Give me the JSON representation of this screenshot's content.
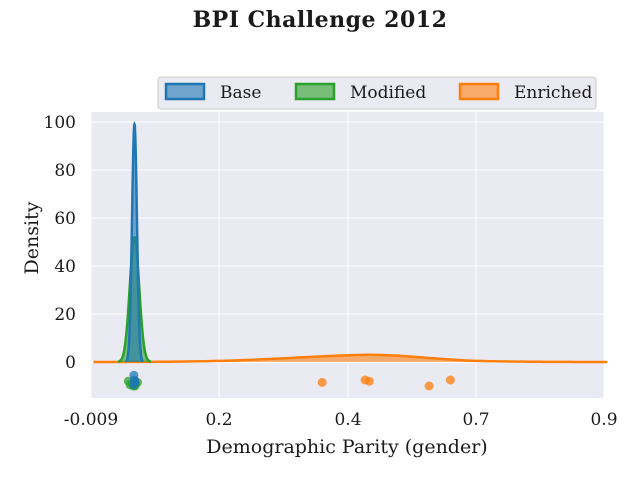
{
  "chart_data": {
    "type": "density",
    "title": "BPI Challenge 2012",
    "xlabel": "Demographic Parity (gender)",
    "ylabel": "Density",
    "xlim": [
      -0.009,
      0.9
    ],
    "ylim": [
      -15,
      104
    ],
    "x_ticks": [
      {
        "value": -0.009,
        "label": "-0.009"
      },
      {
        "value": 0.2,
        "label": "0.2"
      },
      {
        "value": 0.4,
        "label": "0.4"
      },
      {
        "value": 0.7,
        "label": "0.7"
      },
      {
        "value": 0.9,
        "label": "0.9"
      }
    ],
    "y_ticks": [
      0,
      20,
      40,
      60,
      80,
      100
    ],
    "grid": true,
    "legend_position": "top",
    "series": [
      {
        "name": "Base",
        "color": "#1f77b4",
        "kde": {
          "peak_x": 0.062,
          "peak_density": 99,
          "std": 0.004
        },
        "samples": [
          0.061,
          0.062,
          0.063,
          0.061,
          0.062
        ],
        "jitter": [
          -5.5,
          -7.5,
          -8.5,
          -9.5,
          -8.0
        ]
      },
      {
        "name": "Modified",
        "color": "#2ca02c",
        "kde": {
          "peak_x": 0.062,
          "peak_density": 52,
          "std": 0.0077
        },
        "samples": [
          0.052,
          0.055,
          0.058,
          0.063,
          0.067,
          0.06
        ],
        "jitter": [
          -8.0,
          -9.5,
          -9.0,
          -10.0,
          -8.5,
          -10.0
        ]
      },
      {
        "name": "Enriched",
        "color": "#ff7f0e",
        "kde": {
          "peak_x": 0.45,
          "peak_density": 3,
          "std": 0.13
        },
        "samples": [
          0.36,
          0.44,
          0.45,
          0.59,
          0.64
        ],
        "jitter": [
          -8.5,
          -7.5,
          -8.0,
          -10.0,
          -7.5
        ]
      }
    ]
  }
}
